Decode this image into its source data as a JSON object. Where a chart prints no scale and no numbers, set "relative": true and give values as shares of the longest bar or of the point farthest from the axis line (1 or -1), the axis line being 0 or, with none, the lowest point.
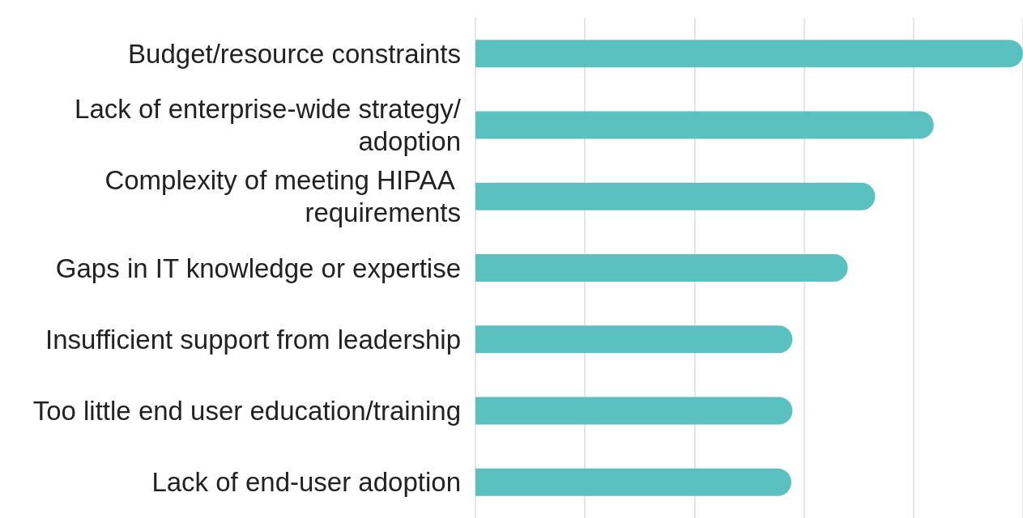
{
  "chart_data": {
    "type": "bar",
    "orientation": "horizontal",
    "relative": true,
    "grid": "x",
    "categories": [
      "Budget/resource constraints",
      "Lack of enterprise-wide strategy/adoption",
      "Complexity of meeting HIPAA requirements",
      "Gaps in IT knowledge or expertise",
      "Insufficient support from leadership",
      "Too little end user education/training",
      "Lack of end-user adoption"
    ],
    "values": [
      1,
      0.837,
      0.73,
      0.68,
      0.579,
      0.579,
      0.577
    ],
    "color": "#5bc0c0"
  }
}
